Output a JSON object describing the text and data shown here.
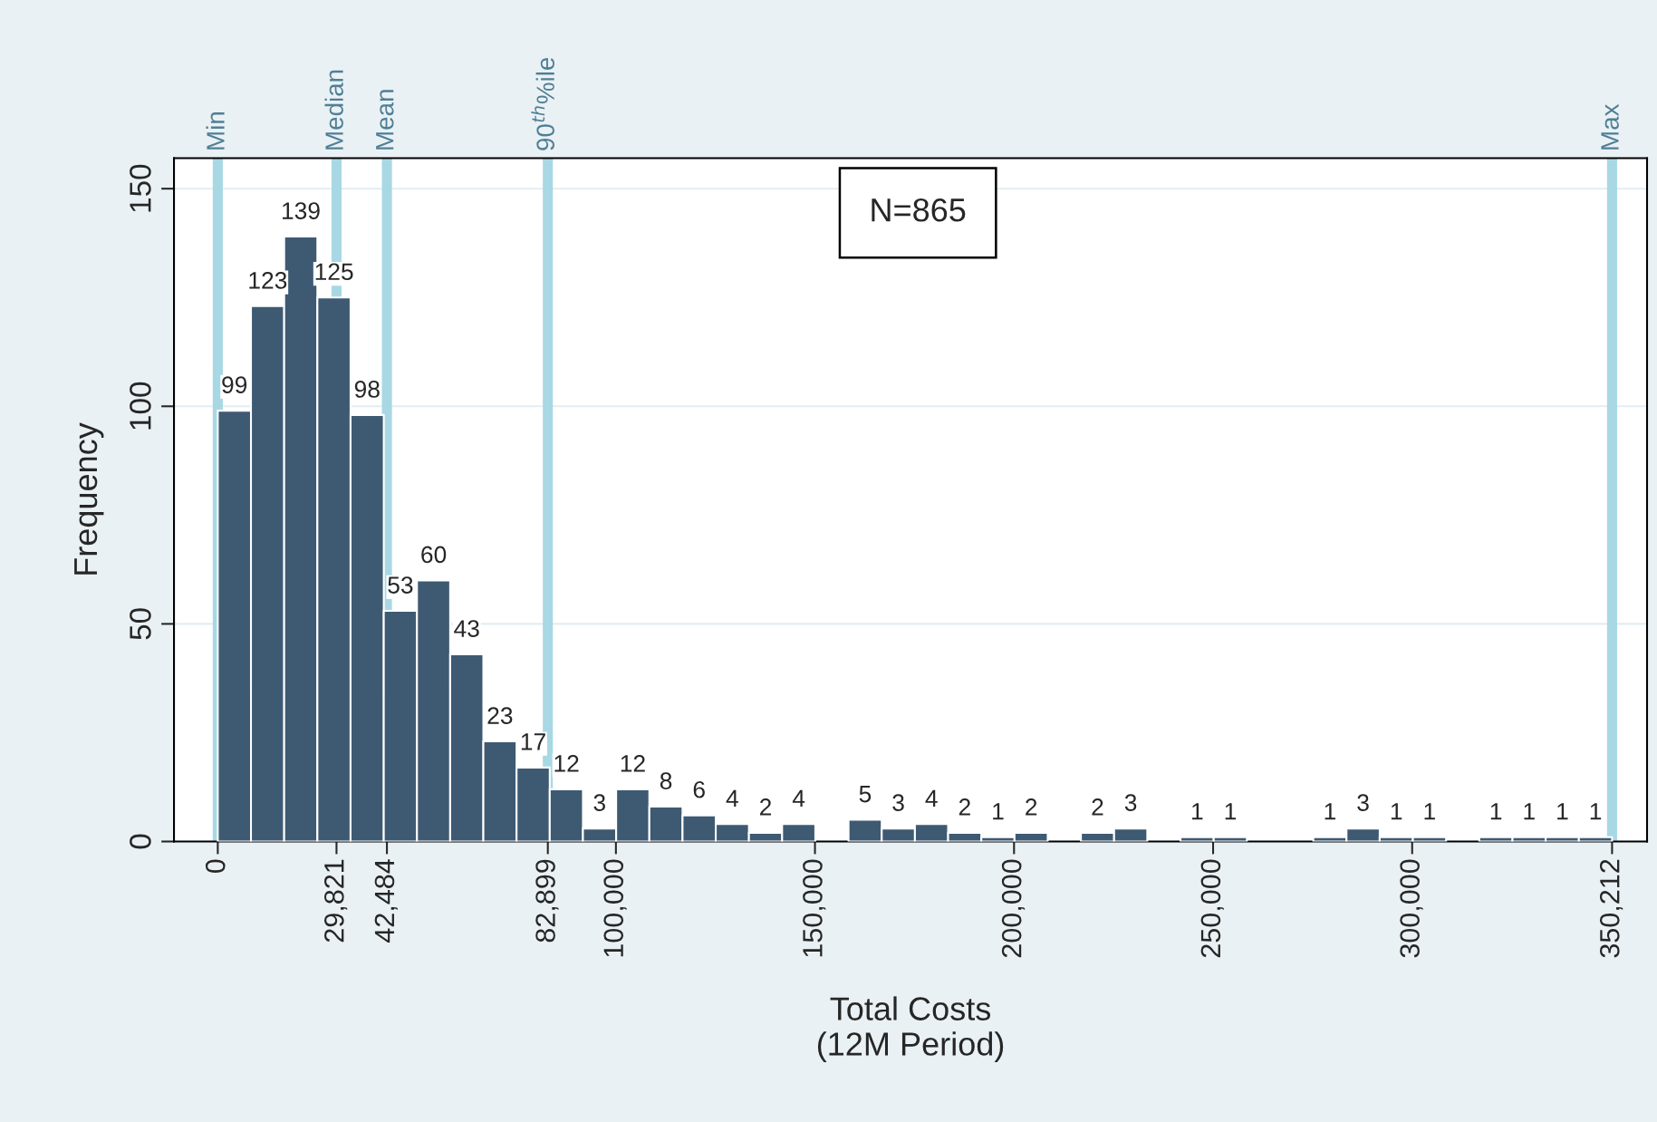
{
  "chart_data": {
    "type": "histogram",
    "xlabel": "Total Costs\n(12M Period)",
    "ylabel": "Frequency",
    "bins": [
      0,
      8338,
      16677,
      25015,
      33354,
      41692,
      50031,
      58369,
      66708,
      75046,
      83384,
      91722,
      100061,
      108399,
      116737,
      125076,
      133414,
      141752,
      150091,
      158429,
      166768,
      175106,
      183444,
      191783,
      200121,
      208460,
      216798,
      225136,
      233475,
      241813,
      250151,
      258490,
      266828,
      275167,
      283505,
      291843,
      300182,
      308520,
      316858,
      325197,
      333535,
      341874,
      350212
    ],
    "values": [
      99,
      123,
      139,
      125,
      98,
      53,
      60,
      43,
      23,
      17,
      12,
      3,
      12,
      8,
      6,
      4,
      2,
      4,
      0,
      5,
      3,
      4,
      2,
      1,
      2,
      0,
      2,
      3,
      0,
      1,
      1,
      0,
      0,
      1,
      3,
      1,
      1,
      0,
      1,
      1,
      1,
      1
    ],
    "value_labels": [
      "99",
      "123",
      "139",
      "125",
      "98",
      "53",
      "60",
      "43",
      "23",
      "17",
      "12",
      "3",
      "12",
      "8",
      "6",
      "4",
      "2",
      "4",
      null,
      "5",
      "3",
      "4",
      "2",
      "1",
      "2",
      null,
      "2",
      "3",
      null,
      "1",
      "1",
      null,
      null,
      "1",
      "3",
      "1",
      "1",
      null,
      "1",
      "1",
      "1",
      "1"
    ],
    "color": "#3e5a73",
    "xlim": [
      -11000,
      359000
    ],
    "ylim": [
      0,
      157
    ],
    "xticks": [
      0,
      {
        "value": 29821,
        "label": "29,821"
      },
      {
        "value": 42484,
        "label": "42,484"
      },
      {
        "value": 82899,
        "label": "82,899"
      },
      {
        "value": 100000,
        "label": "100,000"
      },
      {
        "value": 150000,
        "label": "150,000"
      },
      {
        "value": 200000,
        "label": "200,000"
      },
      {
        "value": 250000,
        "label": "250,000"
      },
      {
        "value": 300000,
        "label": "300,000"
      },
      {
        "value": 350212,
        "label": "350,212"
      }
    ],
    "yticks": [
      0,
      50,
      100,
      150
    ],
    "grid": "y",
    "legend": false,
    "ref_lines": [
      {
        "axis": "x",
        "value": 0,
        "label": "Min",
        "color": "#a8d8e4"
      },
      {
        "axis": "x",
        "value": 29821,
        "label": "Median",
        "color": "#a8d8e4"
      },
      {
        "axis": "x",
        "value": 42484,
        "label": "Mean",
        "color": "#a8d8e4"
      },
      {
        "axis": "x",
        "value": 82899,
        "label": "90$^{th}$%ile",
        "color": "#a8d8e4"
      },
      {
        "axis": "x",
        "value": 350212,
        "label": "Max",
        "color": "#a8d8e4"
      }
    ],
    "annotations": [
      "N=865"
    ]
  }
}
